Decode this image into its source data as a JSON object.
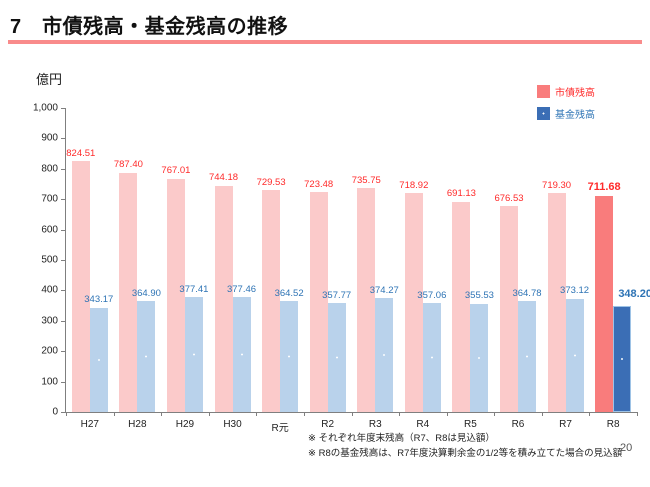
{
  "header": {
    "title": "7　市債残高・基金残高の推移"
  },
  "chart": {
    "unit_label": "億円"
  },
  "legend": {
    "items": [
      {
        "label": "市債残高",
        "swatch_color": "#F97C7C",
        "text_color": "#FF2A2A",
        "pattern": "solid"
      },
      {
        "label": "基金残高",
        "swatch_color": "#3B6EB5",
        "text_color": "#2E74B5",
        "pattern": "dots"
      }
    ]
  },
  "chart_data": {
    "type": "bar",
    "title": "市債残高・基金残高の推移",
    "xlabel": "",
    "ylabel": "億円",
    "ylim": [
      0,
      1000
    ],
    "grid": false,
    "legend_position": "top-right",
    "categories": [
      "H27",
      "H28",
      "H29",
      "H30",
      "R元",
      "R2",
      "R3",
      "R4",
      "R5",
      "R6",
      "R7",
      "R8"
    ],
    "series": [
      {
        "name": "市債残高",
        "color": "#FBCACA",
        "highlight_color": "#F97C7C",
        "label_color": "#FF2A2A",
        "values": [
          824.51,
          787.4,
          767.01,
          744.18,
          729.53,
          723.48,
          735.75,
          718.92,
          691.13,
          676.53,
          719.3,
          711.68
        ]
      },
      {
        "name": "基金残高",
        "color": "#B9D2EB",
        "highlight_color": "#3B6EB5",
        "label_color": "#2E74B5",
        "values": [
          343.17,
          364.9,
          377.41,
          377.46,
          364.52,
          357.77,
          374.27,
          357.06,
          355.53,
          364.78,
          373.12,
          348.2
        ]
      }
    ],
    "highlight_index": 11,
    "y_ticks": {
      "values": [
        0,
        100,
        200,
        300,
        400,
        500,
        600,
        700,
        800,
        900,
        1000
      ],
      "labels": [
        "0",
        "100",
        "200",
        "300",
        "400",
        "500",
        "600",
        "700",
        "800",
        "900",
        "1,000"
      ]
    }
  },
  "colors": {
    "title_underline": "#F98B8B",
    "axis": "#7F7F7F"
  },
  "notes": [
    "※ それぞれ年度末残高（R7、R8は見込額）",
    "※ R8の基金残高は、R7年度決算剰余金の1/2等を積み立てた場合の見込額"
  ],
  "page_number": "20"
}
